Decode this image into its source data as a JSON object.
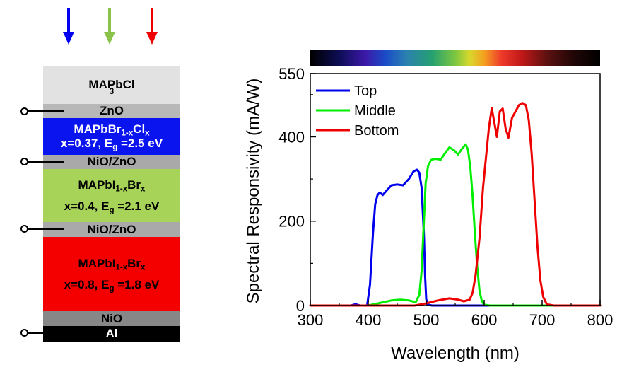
{
  "arrow_colors": [
    "#0000ee",
    "#8bc34a",
    "#ee0000"
  ],
  "stack": {
    "layers": [
      {
        "id": "mapbcl3",
        "html": "MAPbCl<sub>3</sub>",
        "bg": "#e2e2e2",
        "color": "#000000"
      },
      {
        "id": "zno",
        "html": "ZnO",
        "bg": "#b8b8b8",
        "color": "#000000"
      },
      {
        "id": "mapbbr",
        "html": "<span>MAPbBr<sub>1-x</sub>Cl<sub>x</sub></span><span>x=0.37, E<sub>g</sub> =2.5 eV</span>",
        "bg": "#0a14ee",
        "color": "#ffffff"
      },
      {
        "id": "nio-zno-1",
        "html": "NiO/ZnO",
        "bg": "#a9a9a9",
        "color": "#000000"
      },
      {
        "id": "mapbi-04",
        "html": "<span>MAPbI<sub>1-x</sub>Br<sub>x</sub></span><span>x=0.4, E<sub>g</sub> =2.1 eV</span>",
        "bg": "#a7d458",
        "color": "#000000"
      },
      {
        "id": "nio-zno-2",
        "html": "NiO/ZnO",
        "bg": "#a9a9a9",
        "color": "#000000"
      },
      {
        "id": "mapbi-08",
        "html": "<span>MAPbI<sub>1-x</sub>Br<sub>x</sub></span><span>x=0.8, E<sub>g</sub> =1.8 eV</span>",
        "bg": "#f50000",
        "color": "#000000"
      },
      {
        "id": "nio",
        "html": "NiO",
        "bg": "#878787",
        "color": "#000000"
      },
      {
        "id": "al",
        "html": "Al",
        "bg": "#000000",
        "color": "#ffffff"
      }
    ]
  },
  "chart_data": {
    "type": "line",
    "xlabel": "Wavelength (nm)",
    "ylabel": "Spectral Responsivity (mA/W)",
    "xlim": [
      300,
      800
    ],
    "ylim": [
      0,
      550
    ],
    "xticks": [
      300,
      400,
      500,
      600,
      700,
      800
    ],
    "yticks": [
      0,
      200,
      400,
      550
    ],
    "legend_position": "top-left",
    "colorbar": "visible spectrum",
    "series": [
      {
        "name": "Top",
        "color": "#0000ee",
        "x": [
          300,
          370,
          378,
          386,
          398,
          403,
          408,
          412,
          416,
          420,
          425,
          430,
          440,
          450,
          460,
          470,
          478,
          484,
          488,
          492,
          496,
          498,
          500,
          503,
          510,
          600,
          800
        ],
        "y": [
          0,
          0,
          3,
          0,
          0,
          50,
          170,
          240,
          262,
          268,
          262,
          270,
          285,
          287,
          285,
          300,
          318,
          322,
          315,
          280,
          170,
          70,
          15,
          2,
          0,
          0,
          0
        ]
      },
      {
        "name": "Middle",
        "color": "#00ee00",
        "x": [
          300,
          400,
          420,
          440,
          455,
          470,
          482,
          488,
          492,
          496,
          499,
          503,
          508,
          515,
          525,
          532,
          540,
          548,
          555,
          562,
          568,
          572,
          576,
          580,
          584,
          588,
          592,
          596,
          600,
          610,
          800
        ],
        "y": [
          0,
          0,
          6,
          12,
          14,
          12,
          8,
          25,
          80,
          200,
          290,
          330,
          345,
          348,
          346,
          360,
          375,
          368,
          358,
          372,
          382,
          370,
          330,
          260,
          170,
          90,
          35,
          10,
          2,
          0,
          0
        ]
      },
      {
        "name": "Bottom",
        "color": "#ee0000",
        "x": [
          300,
          480,
          500,
          520,
          540,
          555,
          565,
          575,
          580,
          585,
          592,
          598,
          603,
          608,
          613,
          618,
          622,
          627,
          632,
          637,
          642,
          648,
          654,
          660,
          666,
          672,
          677,
          682,
          687,
          692,
          697,
          702,
          708,
          720,
          800
        ],
        "y": [
          0,
          0,
          5,
          12,
          17,
          14,
          10,
          14,
          30,
          70,
          160,
          280,
          350,
          420,
          468,
          430,
          400,
          460,
          467,
          420,
          398,
          445,
          460,
          475,
          480,
          475,
          440,
          360,
          250,
          140,
          60,
          20,
          3,
          0,
          0
        ]
      }
    ]
  }
}
